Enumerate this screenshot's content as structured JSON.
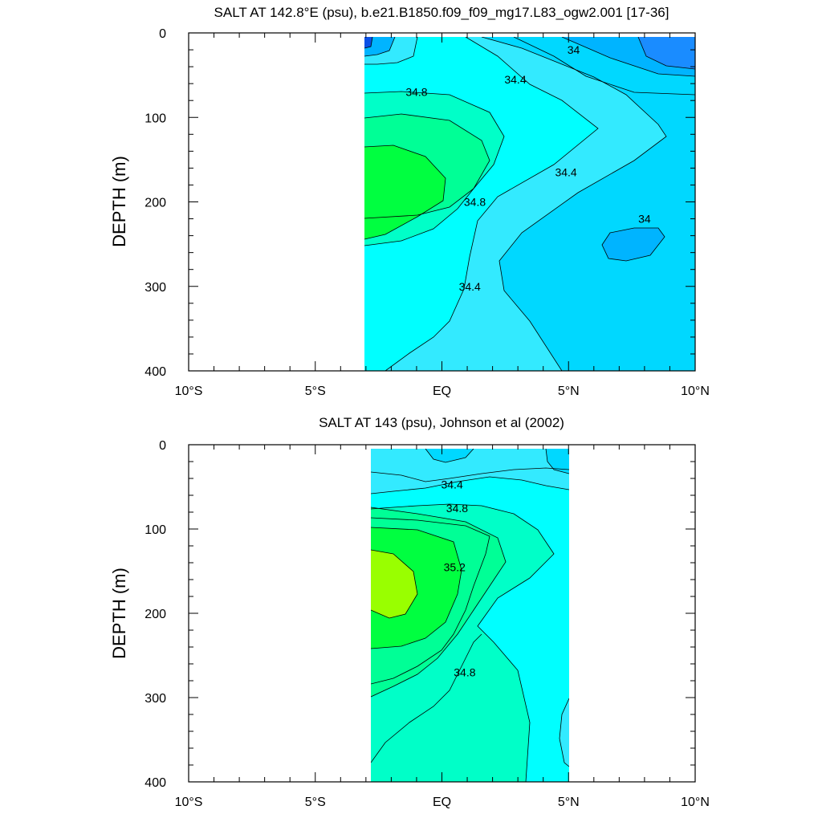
{
  "colors": {
    "salt_33_6": "#0a50e6",
    "salt_33_8": "#1a8cff",
    "salt_34_0": "#00b4ff",
    "salt_34_2": "#00d8ff",
    "salt_34_4": "#33eaff",
    "salt_34_6": "#00ffff",
    "salt_34_8": "#00ffc8",
    "salt_35_0": "#00ff96",
    "salt_35_2": "#00ff40",
    "salt_35_4": "#99ff00"
  },
  "chart_data": [
    {
      "type": "contour",
      "title": "SALT AT 142.8°E (psu), b.e21.B1850.f09_f09_mg17.L83_ogw2.001 [17-36]",
      "ylabel": "DEPTH (m)",
      "xlabel": "",
      "xlim": [
        -10,
        10
      ],
      "ylim": [
        400,
        0
      ],
      "x_ticks": [
        "10°S",
        "5°S",
        "EQ",
        "5°N",
        "10°N"
      ],
      "y_ticks": [
        "0",
        "100",
        "200",
        "300",
        "400"
      ],
      "data_extent": {
        "lat": [
          -3,
          10
        ],
        "depth": [
          5,
          400
        ]
      },
      "contour_interval": 0.2,
      "contour_labels": [
        {
          "text": "34",
          "lat": 5.2,
          "depth": 20
        },
        {
          "text": "34.4",
          "lat": 2.9,
          "depth": 55
        },
        {
          "text": "34.8",
          "lat": -1.0,
          "depth": 70
        },
        {
          "text": "34.8",
          "lat": 1.3,
          "depth": 200
        },
        {
          "text": "34.4",
          "lat": 4.9,
          "depth": 165
        },
        {
          "text": "34",
          "lat": 8.0,
          "depth": 220
        },
        {
          "text": "34.4",
          "lat": 1.1,
          "depth": 300
        }
      ]
    },
    {
      "type": "contour",
      "title": "SALT AT 143 (psu), Johnson et al (2002)",
      "ylabel": "DEPTH (m)",
      "xlabel": "",
      "xlim": [
        -10,
        10
      ],
      "ylim": [
        400,
        0
      ],
      "x_ticks": [
        "10°S",
        "5°S",
        "EQ",
        "5°N",
        "10°N"
      ],
      "y_ticks": [
        "0",
        "100",
        "200",
        "300",
        "400"
      ],
      "data_extent": {
        "lat": [
          -2.8,
          5
        ],
        "depth": [
          5,
          400
        ]
      },
      "contour_interval": 0.2,
      "contour_labels": [
        {
          "text": "34.4",
          "lat": 0.4,
          "depth": 47
        },
        {
          "text": "34.8",
          "lat": 0.6,
          "depth": 75
        },
        {
          "text": "35.2",
          "lat": 0.5,
          "depth": 145
        },
        {
          "text": "34.8",
          "lat": 0.9,
          "depth": 270
        }
      ]
    }
  ]
}
